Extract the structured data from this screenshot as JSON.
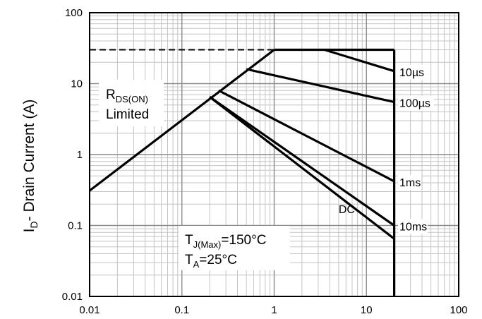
{
  "chart_data": {
    "type": "line",
    "title": "",
    "xlabel": "",
    "ylabel": {
      "prefix": "I",
      "sub": "D",
      "suffix": "- Drain Current (A)"
    },
    "xscale": "log",
    "yscale": "log",
    "xlim": [
      0.01,
      100
    ],
    "ylim": [
      0.01,
      100
    ],
    "grid": true,
    "x_ticks": [
      "0.01",
      "0.1",
      "1",
      "10",
      "100"
    ],
    "y_ticks": [
      "0.01",
      "0.1",
      "1",
      "10",
      "100"
    ],
    "series": [
      {
        "name": "RDS(ON) limit",
        "style": "solid",
        "points": [
          [
            0.01,
            0.31
          ],
          [
            1,
            30
          ]
        ]
      },
      {
        "name": "Current limit",
        "style": "dashed",
        "points": [
          [
            0.01,
            30
          ],
          [
            1,
            30
          ]
        ]
      },
      {
        "name": "Current limit",
        "style": "solid",
        "points": [
          [
            1,
            30
          ],
          [
            20,
            30
          ]
        ]
      },
      {
        "name": "10µs",
        "style": "solid",
        "points": [
          [
            3.5,
            30
          ],
          [
            20,
            15
          ]
        ]
      },
      {
        "name": "100µs",
        "style": "solid",
        "points": [
          [
            0.5,
            16
          ],
          [
            20,
            5.5
          ]
        ]
      },
      {
        "name": "1ms",
        "style": "solid",
        "points": [
          [
            0.25,
            8
          ],
          [
            20,
            0.42
          ]
        ]
      },
      {
        "name": "10ms",
        "style": "solid",
        "points": [
          [
            0.2,
            6.5
          ],
          [
            20,
            0.1
          ]
        ]
      },
      {
        "name": "DC",
        "style": "solid",
        "points": [
          [
            0.2,
            6.5
          ],
          [
            20,
            0.065
          ]
        ]
      },
      {
        "name": "Vertical limit",
        "style": "solid",
        "points": [
          [
            20,
            30
          ],
          [
            20,
            0.01
          ]
        ]
      }
    ],
    "annotations": {
      "rds": {
        "main": "R",
        "sub": "DS(ON)",
        "line2": "Limited"
      },
      "tj": {
        "main": "T",
        "sub": "J(Max)",
        "rest": "=150°C"
      },
      "ta": {
        "main": "T",
        "sub": "A",
        "rest": "=25°C"
      },
      "curves": [
        {
          "text": "10µs",
          "at": [
            22,
            15
          ]
        },
        {
          "text": "100µs",
          "at": [
            22,
            5.5
          ]
        },
        {
          "text": "1ms",
          "at": [
            22,
            0.42
          ]
        },
        {
          "text": "10ms",
          "at": [
            22,
            0.1
          ]
        },
        {
          "text": "DC",
          "at": [
            5,
            0.15
          ]
        }
      ]
    }
  }
}
